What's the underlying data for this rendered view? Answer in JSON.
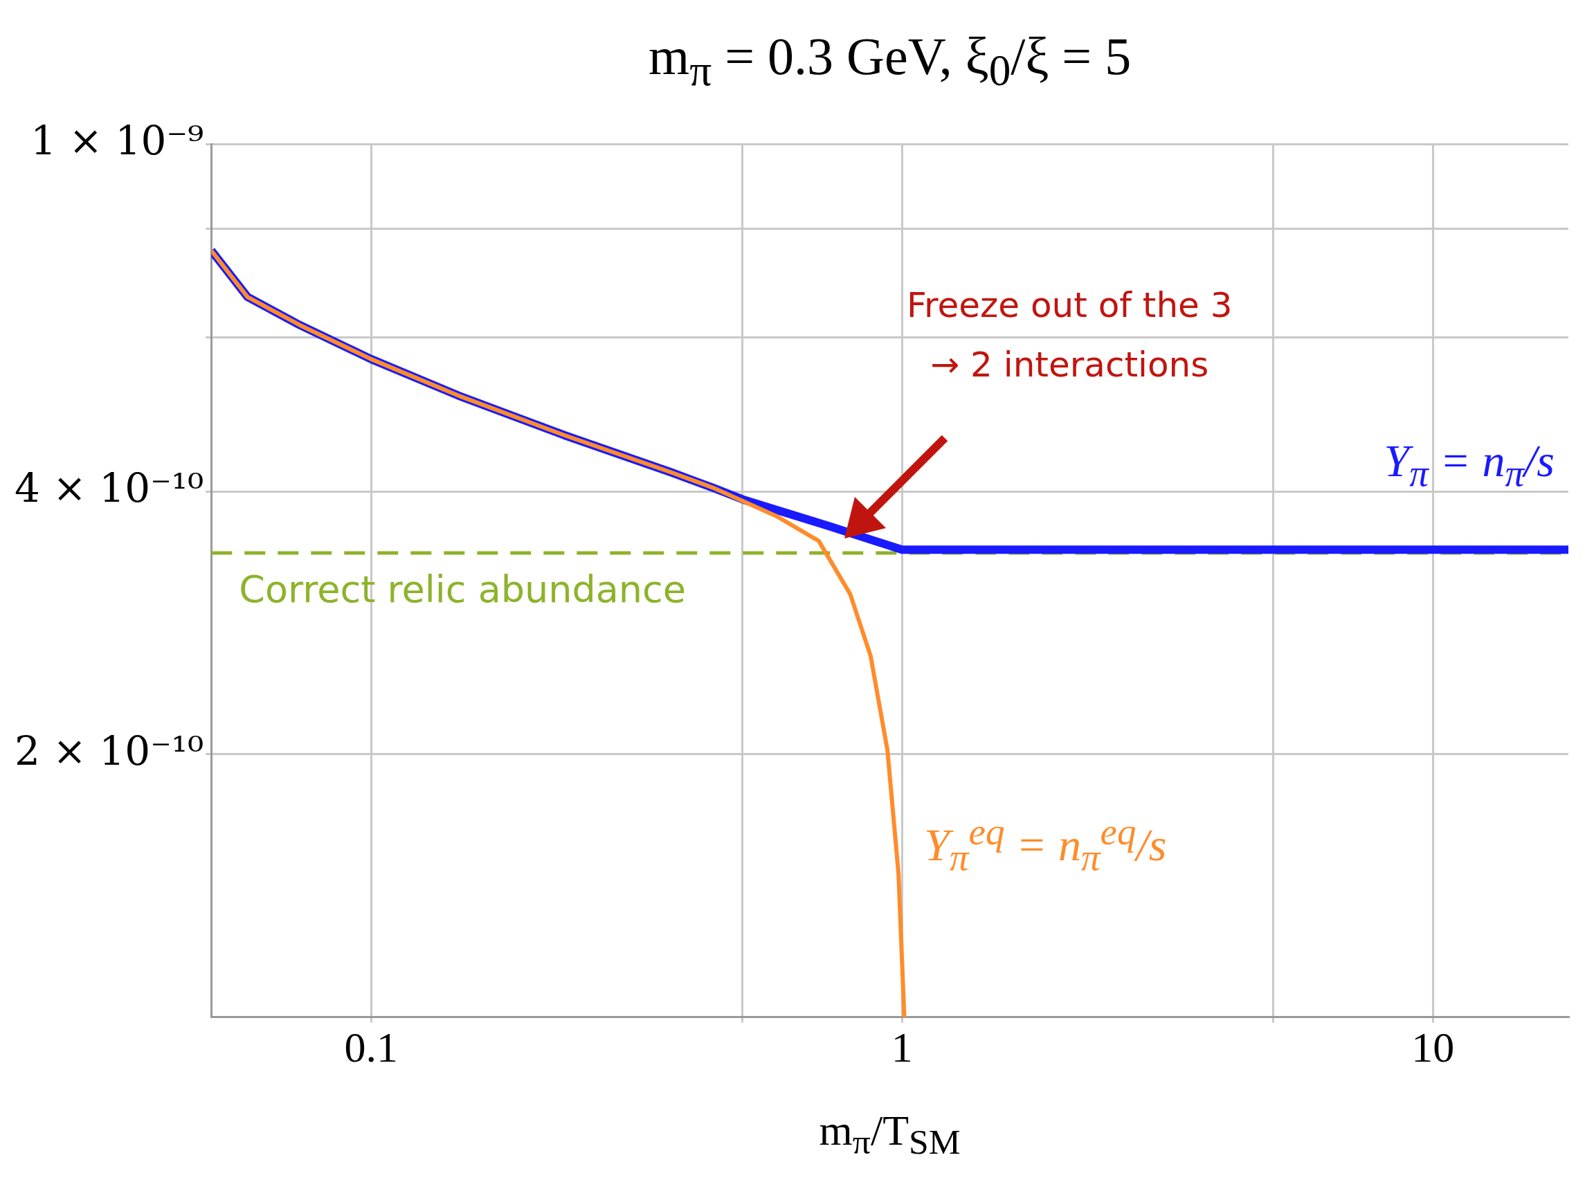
{
  "chart_data": {
    "type": "line",
    "title": "m$_{π}$ = 0.3 GeV, ξ$_{0}$/ξ = 5",
    "xlabel": "m$_{π}$/T$_{SM}$",
    "log": "xy",
    "grid": true,
    "legend": false,
    "xlim": [
      0.05,
      18
    ],
    "xticks": [
      0.1,
      {
        "value": 0.5,
        "label": null
      },
      1,
      {
        "value": 5,
        "label": null
      },
      10
    ],
    "ylim": [
      1e-10,
      1e-09
    ],
    "yticks": [
      {
        "value": 1e-09,
        "label": "1 × 10⁻⁹"
      },
      {
        "value": 8e-10,
        "label": null
      },
      {
        "value": 6e-10,
        "label": null
      },
      {
        "value": 4e-10,
        "label": "4 × 10⁻¹⁰"
      },
      {
        "value": 2e-10,
        "label": "2 × 10⁻¹⁰"
      }
    ],
    "series": [
      {
        "name": "Y$_{π}$ = n$_{π}$/s",
        "color": "#1a1aff",
        "x": [
          0.05,
          0.0585,
          0.0735,
          0.1,
          0.146,
          0.231,
          0.366,
          0.44,
          0.505,
          0.729,
          1.0,
          18
        ],
        "values": [
          7.55e-10,
          6.68e-10,
          6.2e-10,
          5.67e-10,
          5.15e-10,
          4.64e-10,
          4.21e-10,
          4.04e-10,
          3.91e-10,
          3.65e-10,
          3.43e-10,
          3.43e-10
        ]
      },
      {
        "name": "Y$_{π}$$^{eq}$ = n$_{π}$$^{eq}$/s",
        "color": "#ff8c2a",
        "x": [
          0.05,
          0.0585,
          0.0735,
          0.1,
          0.146,
          0.231,
          0.366,
          0.44,
          0.579,
          0.697,
          0.799,
          0.873,
          0.939,
          0.985,
          1.01
        ],
        "values": [
          7.55e-10,
          6.68e-10,
          6.2e-10,
          5.67e-10,
          5.15e-10,
          4.64e-10,
          4.21e-10,
          4.04e-10,
          3.75e-10,
          3.51e-10,
          3.05e-10,
          2.59e-10,
          2.02e-10,
          1.46e-10,
          1e-10
        ]
      }
    ],
    "ref_lines": [
      {
        "axis": "y",
        "value": 3.4e-10,
        "label": "Correct relic abundance",
        "color": "#8db32a",
        "line_style": "dashed"
      }
    ],
    "annotations": [
      "Freeze out of the 3 → 2 interactions"
    ]
  }
}
